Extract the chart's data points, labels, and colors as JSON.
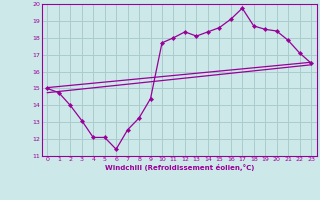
{
  "xlabel": "Windchill (Refroidissement éolien,°C)",
  "bg_color": "#cce8e8",
  "grid_color": "#aacccc",
  "line_color": "#990099",
  "xlim": [
    -0.5,
    23.5
  ],
  "ylim": [
    11,
    20
  ],
  "xticks": [
    0,
    1,
    2,
    3,
    4,
    5,
    6,
    7,
    8,
    9,
    10,
    11,
    12,
    13,
    14,
    15,
    16,
    17,
    18,
    19,
    20,
    21,
    22,
    23
  ],
  "yticks": [
    11,
    12,
    13,
    14,
    15,
    16,
    17,
    18,
    19,
    20
  ],
  "line1_x": [
    0,
    1,
    2,
    3,
    4,
    5,
    6,
    7,
    8,
    9,
    10,
    11,
    12,
    13,
    14,
    15,
    16,
    17,
    18,
    19,
    20,
    21,
    22,
    23
  ],
  "line1_y": [
    15.0,
    14.75,
    14.0,
    13.1,
    12.1,
    12.1,
    11.4,
    12.55,
    13.25,
    14.4,
    17.7,
    18.0,
    18.35,
    18.1,
    18.35,
    18.6,
    19.1,
    19.75,
    18.7,
    18.5,
    18.4,
    17.85,
    17.1,
    16.5
  ],
  "line2_x": [
    0,
    23
  ],
  "line2_y": [
    15.05,
    16.55
  ],
  "line3_x": [
    0,
    23
  ],
  "line3_y": [
    14.75,
    16.4
  ]
}
